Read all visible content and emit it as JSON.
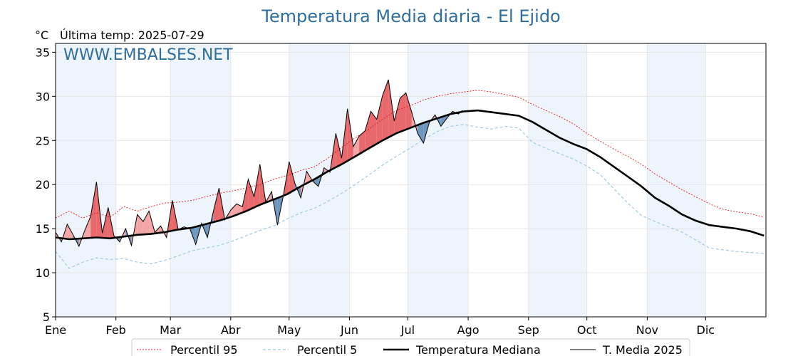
{
  "chart_data": {
    "type": "line",
    "title": "Temperatura Media diaria - El Ejido",
    "unit_label": "°C",
    "last_temp_label": "Última temp: 2025-07-29",
    "watermark": "WWW.EMBALSES.NET",
    "ylim": [
      5,
      36
    ],
    "yticks": [
      5,
      10,
      15,
      20,
      25,
      30,
      35
    ],
    "x_unit": "day_of_year",
    "xlim": [
      1,
      366
    ],
    "months": [
      {
        "label": "Ene",
        "start": 1
      },
      {
        "label": "Feb",
        "start": 32
      },
      {
        "label": "Mar",
        "start": 60
      },
      {
        "label": "Abr",
        "start": 91
      },
      {
        "label": "May",
        "start": 121
      },
      {
        "label": "Jun",
        "start": 152
      },
      {
        "label": "Jul",
        "start": 182
      },
      {
        "label": "Ago",
        "start": 213
      },
      {
        "label": "Sep",
        "start": 244
      },
      {
        "label": "Oct",
        "start": 274
      },
      {
        "label": "Nov",
        "start": 305
      },
      {
        "label": "Dic",
        "start": 335
      }
    ],
    "grid": true,
    "legend_position": "bottom",
    "colors": {
      "p95": "#e31a1c",
      "p5": "#9ecae1",
      "median": "#000000",
      "current": "#000000",
      "above": "#f4a6a6",
      "above_strong": "#e8696b",
      "below": "#6f96bd",
      "band": "#eef4fb"
    },
    "series": [
      {
        "name": "Percentil 95",
        "style": "dotted",
        "x": [
          1,
          8,
          15,
          22,
          29,
          36,
          43,
          50,
          57,
          64,
          71,
          78,
          85,
          92,
          99,
          106,
          113,
          120,
          127,
          134,
          141,
          148,
          155,
          162,
          169,
          176,
          183,
          190,
          197,
          204,
          211,
          218,
          225,
          232,
          239,
          246,
          253,
          260,
          267,
          274,
          281,
          288,
          295,
          302,
          309,
          316,
          323,
          330,
          337,
          344,
          351,
          358,
          365
        ],
        "y": [
          16.2,
          17.0,
          16.2,
          16.8,
          16.3,
          17.5,
          17.0,
          17.5,
          17.9,
          18.0,
          18.2,
          18.6,
          19.0,
          19.3,
          19.6,
          20.0,
          20.6,
          21.0,
          21.6,
          22.0,
          23.0,
          24.2,
          25.3,
          26.3,
          27.4,
          28.4,
          28.9,
          29.6,
          30.0,
          30.3,
          30.5,
          30.7,
          30.5,
          30.2,
          29.9,
          29.1,
          28.4,
          27.7,
          26.9,
          25.8,
          24.9,
          24.0,
          23.2,
          22.3,
          21.2,
          20.3,
          19.4,
          18.6,
          17.8,
          17.2,
          16.9,
          16.7,
          16.3
        ]
      },
      {
        "name": "Percentil 5",
        "style": "dashed",
        "x": [
          1,
          8,
          15,
          22,
          29,
          36,
          43,
          50,
          57,
          64,
          71,
          78,
          85,
          92,
          99,
          106,
          113,
          120,
          127,
          134,
          141,
          148,
          155,
          162,
          169,
          176,
          183,
          190,
          197,
          204,
          211,
          218,
          225,
          232,
          239,
          246,
          253,
          260,
          267,
          274,
          281,
          288,
          295,
          302,
          309,
          316,
          323,
          330,
          337,
          344,
          351,
          358,
          365
        ],
        "y": [
          12.4,
          10.5,
          11.2,
          11.7,
          11.5,
          11.6,
          11.2,
          11.0,
          11.4,
          11.9,
          12.5,
          12.8,
          13.1,
          13.6,
          14.2,
          14.8,
          15.3,
          16.1,
          16.8,
          17.3,
          18.1,
          19.0,
          20.0,
          21.1,
          22.2,
          23.2,
          24.1,
          25.1,
          26.0,
          26.6,
          26.8,
          26.5,
          26.3,
          26.6,
          26.4,
          24.8,
          24.1,
          23.5,
          22.9,
          22.1,
          21.1,
          19.5,
          17.9,
          16.5,
          15.8,
          15.2,
          14.6,
          13.7,
          12.8,
          12.6,
          12.4,
          12.3,
          12.2
        ]
      },
      {
        "name": "Temperatura Mediana",
        "style": "thick",
        "x": [
          1,
          8,
          15,
          22,
          29,
          36,
          43,
          50,
          57,
          64,
          71,
          78,
          85,
          92,
          99,
          106,
          113,
          120,
          127,
          134,
          141,
          148,
          155,
          162,
          169,
          176,
          183,
          190,
          197,
          204,
          211,
          218,
          225,
          232,
          239,
          246,
          253,
          260,
          267,
          274,
          281,
          288,
          295,
          302,
          309,
          316,
          323,
          330,
          337,
          344,
          351,
          358,
          365
        ],
        "y": [
          14.0,
          13.8,
          13.9,
          14.0,
          13.9,
          14.1,
          14.3,
          14.4,
          14.6,
          14.9,
          15.1,
          15.5,
          15.9,
          16.4,
          17.0,
          17.7,
          18.3,
          18.9,
          19.8,
          20.6,
          21.5,
          22.3,
          23.2,
          24.1,
          25.0,
          25.8,
          26.4,
          27.0,
          27.5,
          28.0,
          28.3,
          28.4,
          28.2,
          28.0,
          27.8,
          27.1,
          26.2,
          25.3,
          24.6,
          24.0,
          23.1,
          22.0,
          20.9,
          19.8,
          18.5,
          17.6,
          16.6,
          15.9,
          15.4,
          15.2,
          15.0,
          14.7,
          14.2
        ]
      },
      {
        "name": "T. Media 2025",
        "style": "thin",
        "x": [
          1,
          4,
          7,
          10,
          13,
          16,
          19,
          22,
          25,
          28,
          31,
          34,
          37,
          40,
          43,
          46,
          49,
          52,
          55,
          58,
          61,
          64,
          67,
          70,
          73,
          76,
          79,
          82,
          85,
          88,
          91,
          94,
          97,
          100,
          103,
          106,
          109,
          112,
          115,
          118,
          121,
          124,
          127,
          130,
          133,
          136,
          139,
          142,
          145,
          148,
          151,
          154,
          157,
          160,
          163,
          166,
          169,
          172,
          175,
          178,
          181,
          184,
          187,
          190,
          193,
          196,
          199,
          202,
          205,
          208,
          210
        ],
        "y": [
          14.6,
          13.5,
          15.5,
          14.3,
          13.0,
          14.8,
          16.4,
          20.3,
          14.5,
          17.4,
          14.2,
          13.5,
          15.0,
          13.1,
          16.6,
          15.8,
          17.0,
          14.6,
          15.3,
          14.0,
          18.2,
          14.9,
          15.2,
          15.0,
          13.2,
          15.6,
          14.0,
          16.9,
          19.6,
          16.0,
          17.1,
          17.8,
          17.5,
          20.6,
          18.6,
          22.3,
          18.0,
          19.2,
          15.4,
          18.7,
          22.6,
          20.1,
          18.5,
          21.5,
          20.4,
          19.8,
          21.9,
          21.4,
          25.8,
          23.0,
          28.6,
          24.3,
          25.5,
          26.1,
          28.3,
          27.4,
          30.1,
          31.9,
          27.2,
          29.8,
          30.4,
          28.2,
          25.8,
          24.7,
          27.0,
          27.9,
          26.6,
          27.5,
          28.3,
          28.0,
          28.4
        ]
      }
    ]
  }
}
